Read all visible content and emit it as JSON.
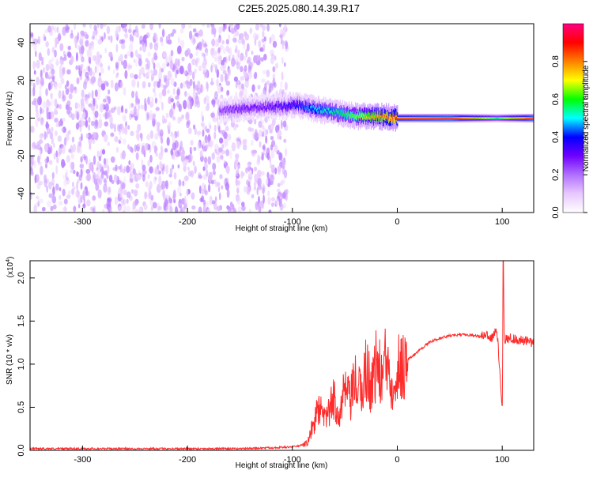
{
  "title": "C2E5.2025.080.14.39.R17",
  "chart_data": [
    {
      "type": "heatmap",
      "xlabel": "Height of straight line (km)",
      "ylabel": "Frequency (Hz)",
      "xlim": [
        -350,
        130
      ],
      "ylim": [
        -50,
        50
      ],
      "x_ticks": [
        -300,
        -200,
        -100,
        0,
        100
      ],
      "y_ticks": [
        -40,
        -20,
        0,
        20,
        40
      ],
      "colorbar": {
        "label": "Normalized spectral amplitude",
        "range": [
          0,
          1
        ],
        "ticks": [
          "0.0",
          "0.2",
          "0.4",
          "0.6",
          "0.8"
        ],
        "colors": [
          "#ffffff",
          "#e8c8ff",
          "#b070ff",
          "#7000ff",
          "#0000ff",
          "#00ffff",
          "#00ff00",
          "#ffff00",
          "#ff8000",
          "#ff0000",
          "#ff0080"
        ]
      },
      "noise_band": {
        "x_range": [
          -350,
          -105
        ],
        "freq_range": [
          -50,
          50
        ],
        "amplitude": 0.15
      },
      "signal_ridge": [
        {
          "x": -170,
          "f": 4,
          "amp": 0.25
        },
        {
          "x": -150,
          "f": 5,
          "amp": 0.3
        },
        {
          "x": -130,
          "f": 6,
          "amp": 0.3
        },
        {
          "x": -110,
          "f": 6,
          "amp": 0.35
        },
        {
          "x": -95,
          "f": 7,
          "amp": 0.4
        },
        {
          "x": -80,
          "f": 5,
          "amp": 0.5
        },
        {
          "x": -60,
          "f": 3,
          "amp": 0.55
        },
        {
          "x": -40,
          "f": 1,
          "amp": 0.65
        },
        {
          "x": -20,
          "f": 1,
          "amp": 0.8
        },
        {
          "x": 0,
          "f": 0,
          "amp": 0.9
        },
        {
          "x": 50,
          "f": 0,
          "amp": 0.98
        },
        {
          "x": 95,
          "f": 0,
          "amp": 0.6
        },
        {
          "x": 130,
          "f": 0,
          "amp": 0.98
        }
      ]
    },
    {
      "type": "line",
      "xlabel": "Height of straight line (km)",
      "ylabel": "SNR (10 * v/v)",
      "y_scale_label": "(x10",
      "y_scale_exponent": "4",
      "xlim": [
        -350,
        130
      ],
      "ylim": [
        0,
        2.2
      ],
      "x_ticks": [
        -300,
        -200,
        -100,
        0,
        100
      ],
      "y_ticks": [
        "0.0",
        "0.5",
        "1.0",
        "1.5",
        "2.0"
      ],
      "color": "#ff2a2a",
      "series": [
        {
          "x": [
            -350,
            -300,
            -250,
            -200,
            -150,
            -120,
            -100,
            -90,
            -85,
            -80,
            -75,
            -70,
            -65,
            -60,
            -55,
            -50,
            -45,
            -40,
            -35,
            -30,
            -25,
            -20,
            -15,
            -10,
            -5,
            0,
            5,
            10,
            20,
            30,
            40,
            50,
            60,
            70,
            75,
            80,
            85,
            90,
            95,
            100,
            101,
            102,
            103,
            105,
            110,
            115,
            120,
            125,
            130
          ],
          "y": [
            0.02,
            0.02,
            0.02,
            0.02,
            0.02,
            0.03,
            0.04,
            0.06,
            0.1,
            0.3,
            0.5,
            0.35,
            0.45,
            0.6,
            0.4,
            0.7,
            0.55,
            0.8,
            0.65,
            0.95,
            0.75,
            1.0,
            0.85,
            1.05,
            0.8,
            0.95,
            1.0,
            1.05,
            1.15,
            1.25,
            1.3,
            1.33,
            1.34,
            1.34,
            1.33,
            1.32,
            1.35,
            1.3,
            1.4,
            0.52,
            2.2,
            1.3,
            1.28,
            1.3,
            1.3,
            1.28,
            1.27,
            1.26,
            1.24
          ]
        }
      ]
    }
  ]
}
